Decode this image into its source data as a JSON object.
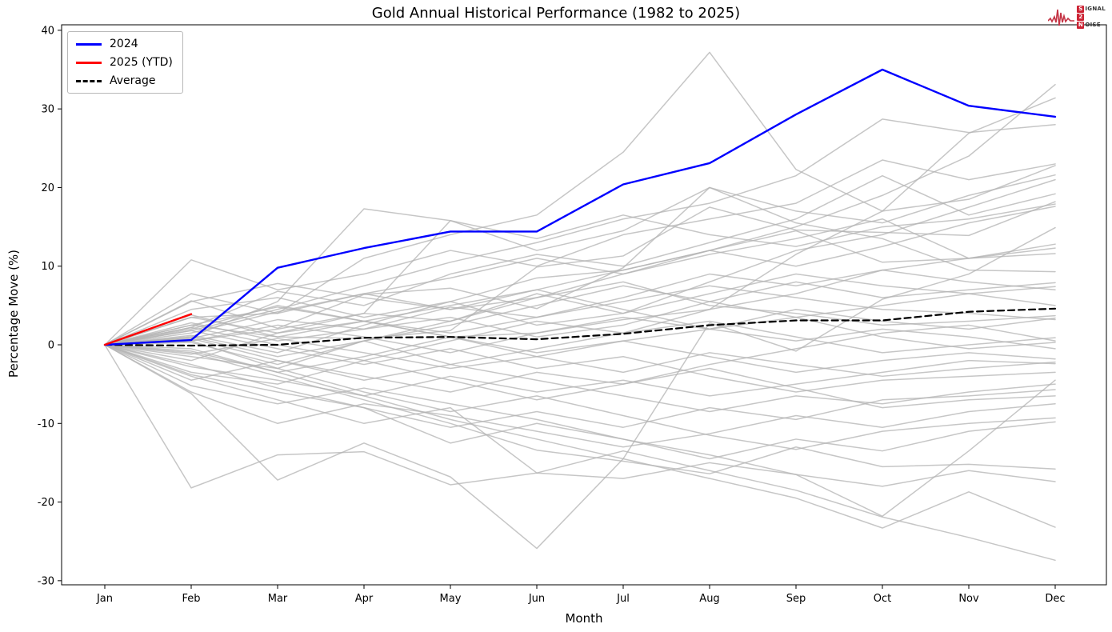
{
  "page_title": "Gold Annual Historical Performance (1982 to 2025)",
  "logo": {
    "words": [
      {
        "badge": "S",
        "rest": "IGNAL"
      },
      {
        "badge": "2",
        "rest": ""
      },
      {
        "badge": "N",
        "rest": "OISE"
      }
    ],
    "waveform_color": "#c43344"
  },
  "chart_data": {
    "type": "line",
    "title": "Gold Annual Historical Performance (1982 to 2025)",
    "xlabel": "Month",
    "ylabel": "Percentage Move (%)",
    "x_ticklabels": [
      "Jan",
      "Feb",
      "Mar",
      "Apr",
      "May",
      "Jun",
      "Jul",
      "Aug",
      "Sep",
      "Oct",
      "Nov",
      "Dec"
    ],
    "yticks": [
      -30,
      -20,
      -10,
      0,
      10,
      20,
      30,
      40
    ],
    "ylim": [
      -30.5,
      40.7
    ],
    "grid": false,
    "legend": {
      "position": "upper left",
      "entries": [
        {
          "label": "2024",
          "color": "#0000ff",
          "dash": "solid"
        },
        {
          "label": "2025 (YTD)",
          "color": "#ff0000",
          "dash": "solid"
        },
        {
          "label": "Average",
          "color": "#000000",
          "dash": "dashed"
        }
      ]
    },
    "series": [
      {
        "name": "2024",
        "color": "#0000ff",
        "width": 2.4,
        "dash": "solid",
        "values": [
          0,
          0.6,
          9.8,
          12.3,
          14.4,
          14.4,
          20.4,
          23.1,
          29.3,
          35.0,
          30.4,
          29.0
        ]
      },
      {
        "name": "2025 (YTD)",
        "color": "#ff0000",
        "width": 2.4,
        "dash": "solid",
        "values": [
          0,
          3.9
        ]
      },
      {
        "name": "Average",
        "color": "#000000",
        "width": 2.2,
        "dash": "dashed",
        "values": [
          0,
          -0.1,
          0.0,
          0.9,
          1.0,
          0.7,
          1.4,
          2.5,
          3.1,
          3.1,
          4.2,
          4.6
        ]
      }
    ],
    "historical_series": {
      "label": "individual years 1982-2023 (unlabeled gray lines)",
      "color": "#b3b3b3",
      "opacity": 0.75,
      "width": 1.5,
      "values": [
        [
          0,
          0.5,
          2.0,
          4.0,
          3.0,
          6.0,
          9.0,
          12.0,
          15.0,
          19.0,
          24.0,
          33.1
        ],
        [
          0,
          3.5,
          1.5,
          3.0,
          1.0,
          1.5,
          3.2,
          4.5,
          11.5,
          17.0,
          26.9,
          31.4
        ],
        [
          0,
          1.8,
          4.5,
          7.5,
          10.5,
          13.0,
          16.0,
          18.0,
          21.5,
          28.7,
          27.0,
          28.0
        ],
        [
          0,
          10.8,
          7.0,
          9.0,
          12.0,
          10.0,
          14.0,
          16.0,
          18.0,
          23.5,
          21.0,
          23.0
        ],
        [
          0,
          3.5,
          4.0,
          11.0,
          14.0,
          16.5,
          24.5,
          37.2,
          22.3,
          17.0,
          18.5,
          22.8
        ],
        [
          0,
          1.0,
          5.5,
          17.3,
          15.8,
          12.0,
          14.5,
          20.0,
          17.0,
          15.5,
          19.0,
          21.6
        ],
        [
          0,
          -1.5,
          -3.0,
          0.5,
          3.0,
          6.5,
          4.0,
          8.0,
          12.0,
          14.0,
          17.5,
          21.0
        ],
        [
          0,
          2.2,
          6.8,
          5.0,
          9.0,
          11.5,
          10.0,
          13.0,
          16.0,
          21.5,
          16.5,
          19.2
        ],
        [
          0,
          2.5,
          1.0,
          0.8,
          1.8,
          9.9,
          11.3,
          17.5,
          14.6,
          14.3,
          13.9,
          18.2
        ],
        [
          0,
          -2.0,
          1.5,
          4.0,
          15.8,
          13.5,
          16.5,
          14.0,
          12.5,
          15.0,
          16.0,
          17.9
        ],
        [
          0,
          5.5,
          7.8,
          6.0,
          4.5,
          7.0,
          9.5,
          12.0,
          10.0,
          12.5,
          15.5,
          17.6
        ],
        [
          0,
          -6.2,
          -17.2,
          -12.5,
          -16.8,
          -25.9,
          -14.5,
          2.8,
          -0.8,
          5.8,
          9.0,
          14.9
        ],
        [
          0,
          1.2,
          -1.0,
          2.5,
          5.5,
          8.5,
          9.5,
          12.0,
          14.5,
          10.5,
          11.0,
          12.8
        ],
        [
          0,
          0.8,
          3.2,
          2.0,
          4.8,
          3.5,
          6.0,
          9.0,
          7.5,
          9.5,
          11.0,
          12.3
        ],
        [
          0,
          6.5,
          4.0,
          6.5,
          8.5,
          11.0,
          9.0,
          11.5,
          13.5,
          16.0,
          11.0,
          11.6
        ],
        [
          0,
          5.6,
          2.1,
          6.4,
          7.2,
          4.6,
          9.8,
          20.0,
          15.5,
          13.5,
          9.5,
          9.3
        ],
        [
          0,
          0.3,
          -2.5,
          0.5,
          2.5,
          5.0,
          7.5,
          5.5,
          8.0,
          6.0,
          7.0,
          7.9
        ],
        [
          0,
          4.5,
          6.0,
          3.5,
          5.5,
          2.5,
          4.0,
          6.5,
          9.0,
          7.5,
          6.5,
          7.4
        ],
        [
          0,
          -3.5,
          -5.0,
          -2.0,
          0.5,
          3.0,
          1.5,
          4.5,
          6.5,
          9.5,
          8.0,
          7.0
        ],
        [
          0,
          2.8,
          0.5,
          2.0,
          3.5,
          1.0,
          2.5,
          5.5,
          3.5,
          5.0,
          6.5,
          5.0
        ],
        [
          0,
          1.5,
          4.2,
          6.5,
          4.5,
          6.0,
          8.0,
          5.0,
          4.0,
          2.5,
          3.0,
          3.7
        ],
        [
          0,
          -0.8,
          -3.5,
          -1.5,
          1.0,
          -1.0,
          0.5,
          2.0,
          4.5,
          3.0,
          2.0,
          3.4
        ],
        [
          0,
          2.0,
          5.0,
          3.0,
          1.5,
          3.5,
          5.5,
          7.5,
          6.0,
          4.5,
          4.0,
          3.2
        ],
        [
          0,
          1.0,
          -1.5,
          0.5,
          -2.5,
          -0.5,
          1.5,
          3.0,
          1.0,
          -1.0,
          0.0,
          0.9
        ],
        [
          0,
          -4.5,
          -2.0,
          -4.0,
          -6.0,
          -3.5,
          -5.0,
          -2.5,
          -0.5,
          1.5,
          2.5,
          0.5
        ],
        [
          0,
          3.8,
          1.0,
          3.0,
          5.0,
          7.0,
          4.5,
          2.0,
          3.5,
          1.0,
          -0.5,
          0.3
        ],
        [
          0,
          0.5,
          2.5,
          1.0,
          -1.0,
          1.5,
          3.5,
          2.0,
          0.5,
          2.0,
          1.0,
          -0.5
        ],
        [
          0,
          -1.2,
          0.8,
          -1.0,
          -3.0,
          -1.5,
          0.5,
          -1.5,
          -3.5,
          -2.0,
          -1.0,
          -1.8
        ],
        [
          0,
          2.5,
          4.8,
          3.0,
          1.0,
          -1.5,
          -3.5,
          -1.0,
          -2.5,
          -4.0,
          -3.0,
          -2.2
        ],
        [
          0,
          -2.8,
          -4.5,
          -6.5,
          -4.0,
          -6.0,
          -4.5,
          -6.5,
          -5.0,
          -3.5,
          -2.0,
          -2.4
        ],
        [
          0,
          1.8,
          -0.5,
          -2.5,
          -0.5,
          -3.0,
          -1.5,
          -4.0,
          -6.0,
          -4.5,
          -4.0,
          -3.5
        ],
        [
          0,
          -5.2,
          -7.5,
          -5.5,
          -7.5,
          -9.5,
          -12.0,
          -14.0,
          -16.5,
          -21.8,
          -13.5,
          -4.5
        ],
        [
          0,
          0.8,
          -2.0,
          -4.5,
          -2.5,
          -4.5,
          -6.5,
          -8.5,
          -6.5,
          -7.5,
          -6.0,
          -5.0
        ],
        [
          0,
          -3.8,
          -6.0,
          -8.0,
          -10.5,
          -8.5,
          -10.5,
          -8.0,
          -9.5,
          -7.0,
          -6.5,
          -5.7
        ],
        [
          0,
          2.2,
          0.0,
          -2.0,
          -4.5,
          -7.0,
          -5.0,
          -3.0,
          -5.5,
          -8.0,
          -7.0,
          -6.5
        ],
        [
          0,
          -6.0,
          -10.0,
          -7.5,
          -9.0,
          -11.0,
          -13.0,
          -11.3,
          -9.0,
          -10.5,
          -8.5,
          -7.5
        ],
        [
          0,
          0.5,
          -3.0,
          -6.0,
          -8.5,
          -6.5,
          -9.0,
          -11.5,
          -13.3,
          -11.0,
          -10.0,
          -9.3
        ],
        [
          0,
          -2.5,
          -5.5,
          -8.0,
          -12.5,
          -10.0,
          -12.0,
          -14.5,
          -12.0,
          -13.5,
          -11.0,
          -9.8
        ],
        [
          0,
          -1.0,
          -4.0,
          -7.0,
          -10.0,
          -13.4,
          -14.8,
          -16.4,
          -13.0,
          -15.5,
          -15.2,
          -15.8
        ],
        [
          0,
          -18.2,
          -14.0,
          -13.6,
          -17.8,
          -16.3,
          -17.0,
          -15.0,
          -16.5,
          -18.0,
          -16.0,
          -17.4
        ],
        [
          0,
          -0.5,
          -3.5,
          -6.5,
          -9.5,
          -12.0,
          -14.5,
          -17.0,
          -19.5,
          -23.3,
          -18.7,
          -23.2
        ],
        [
          0,
          -4.0,
          -7.0,
          -10.0,
          -8.0,
          -16.3,
          -13.5,
          -16.0,
          -18.5,
          -21.9,
          -24.5,
          -27.4
        ]
      ]
    }
  }
}
